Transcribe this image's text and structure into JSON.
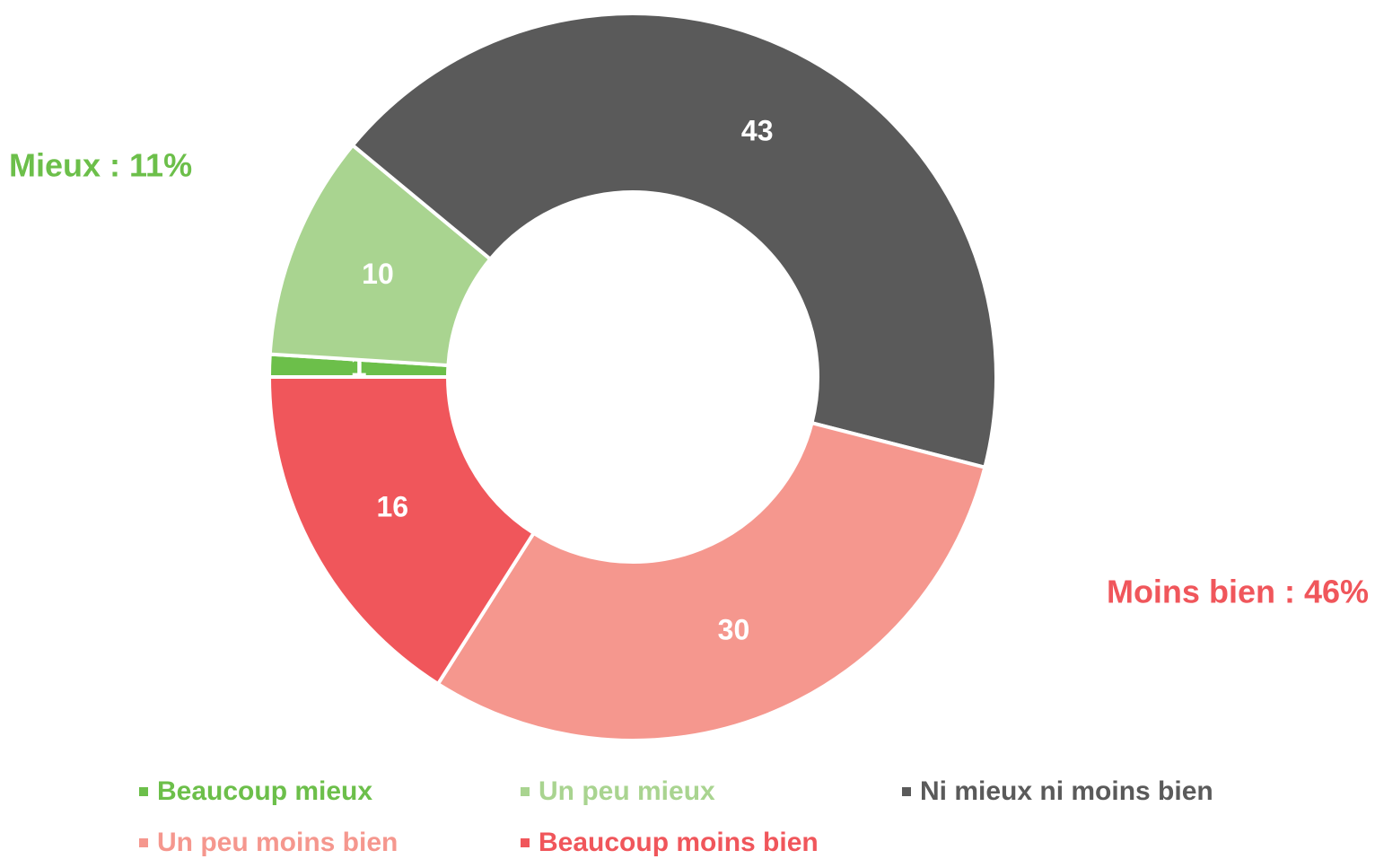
{
  "chart_data": {
    "type": "donut",
    "categories": [
      "Beaucoup mieux",
      "Un peu mieux",
      "Ni mieux ni moins bien",
      "Un peu moins bien",
      "Beaucoup moins bien"
    ],
    "values": [
      1,
      10,
      43,
      30,
      16
    ],
    "colors": [
      "#6cbf4a",
      "#a9d490",
      "#5a5a5a",
      "#f5978e",
      "#f0565b"
    ],
    "annotations": [
      {
        "text": "Mieux : 11%",
        "color": "#6cbf4a"
      },
      {
        "text": "Moins bien : 46%",
        "color": "#f0565b"
      }
    ]
  }
}
